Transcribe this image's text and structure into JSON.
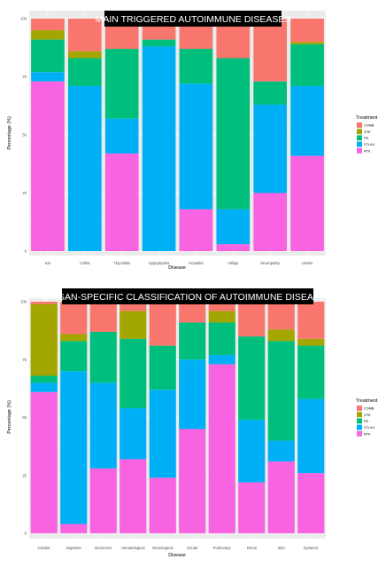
{
  "chart_data": [
    {
      "type": "bar",
      "stacked": true,
      "title": "MAIN TRIGGERED AUTOIMMUNE DISEASES",
      "xlabel": "Disease",
      "ylabel": "Percentage (%)",
      "ylim": [
        0,
        100
      ],
      "yticks": [
        "0",
        "25",
        "50",
        "75",
        "100"
      ],
      "grid": true,
      "legend_position": "right",
      "legend_title": "Treatment",
      "categories": [
        "ILD",
        "Colitis",
        "Thyroiditis",
        "Hypophysitis",
        "Hepatitis",
        "Vitiligo",
        "Neuropathy",
        "Uveitis"
      ],
      "series": [
        {
          "name": "RTK",
          "color": "#f763e0",
          "values": [
            73,
            0,
            42,
            0,
            18,
            3,
            25,
            41
          ]
        },
        {
          "name": "CTLA4",
          "color": "#00b0f6",
          "values": [
            4,
            71,
            15,
            88,
            54,
            15,
            38,
            30
          ]
        },
        {
          "name": "PD",
          "color": "#00bf7d",
          "values": [
            14,
            12,
            30,
            3,
            15,
            65,
            10,
            18
          ]
        },
        {
          "name": "OTK",
          "color": "#a3a500",
          "values": [
            4,
            3,
            0,
            0,
            0,
            0,
            0,
            1
          ]
        },
        {
          "name": "COMB",
          "color": "#f8766d",
          "values": [
            5,
            14,
            13,
            9,
            13,
            17,
            27,
            10
          ]
        }
      ]
    },
    {
      "type": "bar",
      "stacked": true,
      "title": "ORGAN-SPECIFIC CLASSIFICATION OF AUTOIMMUNE DISEASES",
      "xlabel": "Disease",
      "ylabel": "Percentage (%)",
      "ylim": [
        0,
        100
      ],
      "yticks": [
        "0",
        "25",
        "50",
        "75",
        "100"
      ],
      "grid": true,
      "legend_position": "right",
      "legend_title": "Treatment",
      "categories": [
        "Cardiac",
        "Digestive",
        "Endocrine",
        "Hematological",
        "Neurological",
        "Ocular",
        "Pulmonary",
        "Renal",
        "Skin",
        "Systemic"
      ],
      "series": [
        {
          "name": "RTK",
          "color": "#f763e0",
          "values": [
            61,
            4,
            28,
            32,
            24,
            45,
            73,
            22,
            31,
            26
          ]
        },
        {
          "name": "CTLA4",
          "color": "#00b0f6",
          "values": [
            4,
            66,
            37,
            22,
            38,
            30,
            4,
            27,
            9,
            32
          ]
        },
        {
          "name": "PD",
          "color": "#00bf7d",
          "values": [
            3,
            13,
            22,
            30,
            19,
            16,
            14,
            36,
            43,
            23
          ]
        },
        {
          "name": "OTK",
          "color": "#a3a500",
          "values": [
            31,
            3,
            0,
            12,
            0,
            0,
            5,
            0,
            5,
            3
          ]
        },
        {
          "name": "COMB",
          "color": "#f8766d",
          "values": [
            1,
            14,
            13,
            4,
            19,
            9,
            4,
            15,
            12,
            16
          ]
        }
      ]
    }
  ]
}
